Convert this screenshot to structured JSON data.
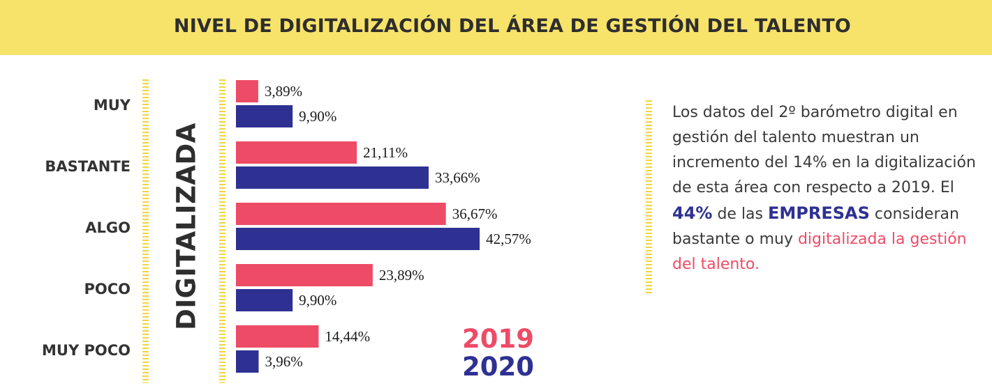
{
  "title": "NIVEL DE DIGITALIZACIÓN DEL ÁREA DE GESTIÓN DEL TALENTO",
  "colors": {
    "banner": "#f7e36a",
    "series_2019": "#ee4b66",
    "series_2020": "#2e3192",
    "dots": "#f2d53c"
  },
  "chart_data": {
    "type": "bar",
    "orientation": "horizontal",
    "categories": [
      "MUY",
      "BASTANTE",
      "ALGO",
      "POCO",
      "MUY POCO"
    ],
    "axis_title": "DIGITALIZADA",
    "series": [
      {
        "name": "2019",
        "values": [
          3.89,
          21.11,
          36.67,
          23.89,
          14.44
        ],
        "labels": [
          "3,89%",
          "21,11%",
          "36,67%",
          "23,89%",
          "14,44%"
        ]
      },
      {
        "name": "2020",
        "values": [
          9.9,
          33.66,
          42.57,
          9.9,
          3.96
        ],
        "labels": [
          "9,90%",
          "33,66%",
          "42,57%",
          "9,90%",
          "3,96%"
        ]
      }
    ],
    "legend_position": "bottom-right",
    "grid": false,
    "xlim": [
      0,
      50
    ]
  },
  "description": {
    "part1": "Los datos del 2º barómetro digital en gestión del talento muestran un incremento del 14% en la digitalización de esta área con respecto a 2019. El ",
    "highlight1": "44%",
    "part2": " de las ",
    "highlight2": "EMPRESAS",
    "part3": " consideran bastante o muy ",
    "highlight3": "digitalizada la gestión del talento."
  }
}
